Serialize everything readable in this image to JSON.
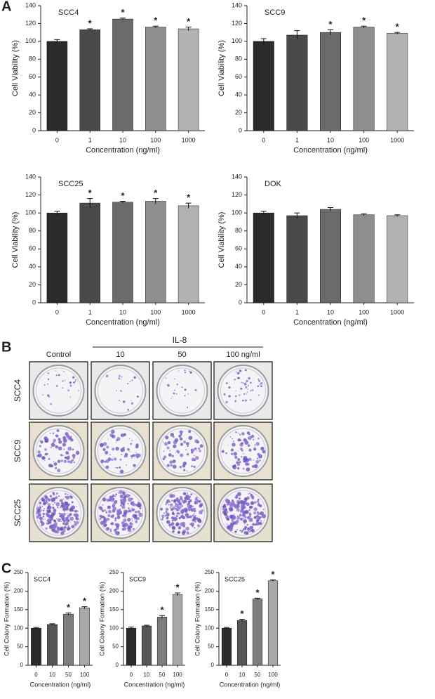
{
  "panel_labels": [
    "A",
    "B",
    "C"
  ],
  "panel_b": {
    "group_label": "IL-8",
    "columns": [
      "Control",
      "10",
      "50",
      "100 ng/ml"
    ],
    "rows": [
      "SCC4",
      "SCC9",
      "SCC25"
    ]
  },
  "chart_data": [
    {
      "type": "bar",
      "title": "SCC4",
      "x_label": "Concentration (ng/ml)",
      "y_label": "Cell Viability (%)",
      "categories": [
        "0",
        "1",
        "10",
        "100",
        "1000"
      ],
      "values": [
        100,
        113,
        125,
        116,
        114
      ],
      "errors": [
        2,
        1,
        1,
        1,
        2
      ],
      "stars": [
        null,
        "*",
        "*",
        "*",
        "*"
      ],
      "colors": [
        "#2b2b2b",
        "#4a4a4a",
        "#6b6b6b",
        "#8e8e8e",
        "#b2b2b2"
      ],
      "ylim": [
        0,
        140
      ],
      "yticks": [
        0,
        20,
        40,
        60,
        80,
        100,
        120,
        140
      ]
    },
    {
      "type": "bar",
      "title": "SCC9",
      "x_label": "Concentration (ng/ml)",
      "y_label": "Cell Viability (%)",
      "categories": [
        "0",
        "1",
        "10",
        "100",
        "1000"
      ],
      "values": [
        100,
        107,
        110,
        116,
        109
      ],
      "errors": [
        3,
        5,
        3,
        1,
        1
      ],
      "stars": [
        null,
        null,
        "*",
        "*",
        "*"
      ],
      "colors": [
        "#2b2b2b",
        "#4a4a4a",
        "#6b6b6b",
        "#8e8e8e",
        "#b2b2b2"
      ],
      "ylim": [
        0,
        140
      ],
      "yticks": [
        0,
        20,
        40,
        60,
        80,
        100,
        120,
        140
      ]
    },
    {
      "type": "bar",
      "title": "SCC25",
      "x_label": "Concentration (ng/ml)",
      "y_label": "Cell Viability (%)",
      "categories": [
        "0",
        "1",
        "10",
        "100",
        "1000"
      ],
      "values": [
        100,
        111,
        112,
        113,
        108
      ],
      "errors": [
        2,
        5,
        1,
        3,
        3
      ],
      "stars": [
        null,
        "*",
        "*",
        "*",
        "*"
      ],
      "colors": [
        "#2b2b2b",
        "#4a4a4a",
        "#6b6b6b",
        "#8e8e8e",
        "#b2b2b2"
      ],
      "ylim": [
        0,
        140
      ],
      "yticks": [
        0,
        20,
        40,
        60,
        80,
        100,
        120,
        140
      ]
    },
    {
      "type": "bar",
      "title": "DOK",
      "x_label": "Concentration (ng/ml)",
      "y_label": "Cell Viability (%)",
      "categories": [
        "0",
        "1",
        "10",
        "100",
        "1000"
      ],
      "values": [
        100,
        97,
        104,
        98,
        97
      ],
      "errors": [
        2,
        3,
        2,
        1,
        1
      ],
      "stars": [
        null,
        null,
        null,
        null,
        null
      ],
      "colors": [
        "#2b2b2b",
        "#4a4a4a",
        "#6b6b6b",
        "#8e8e8e",
        "#b2b2b2"
      ],
      "ylim": [
        0,
        140
      ],
      "yticks": [
        0,
        20,
        40,
        60,
        80,
        100,
        120,
        140
      ]
    },
    {
      "type": "bar",
      "title": "SCC4",
      "x_label": "Concentration (ng/ml)",
      "y_label": "Cell Colony Formation (%)",
      "categories": [
        "0",
        "10",
        "50",
        "100"
      ],
      "values": [
        100,
        110,
        138,
        155
      ],
      "errors": [
        2,
        2,
        3,
        3
      ],
      "stars": [
        null,
        null,
        "*",
        "*"
      ],
      "colors": [
        "#2b2b2b",
        "#555555",
        "#7d7d7d",
        "#a8a8a8"
      ],
      "ylim": [
        0,
        250
      ],
      "yticks": [
        0,
        50,
        100,
        150,
        200,
        250
      ]
    },
    {
      "type": "bar",
      "title": "SCC9",
      "x_label": "Concentration (ng/ml)",
      "y_label": "Cell Colony Formation (%)",
      "categories": [
        "0",
        "10",
        "50",
        "100"
      ],
      "values": [
        100,
        106,
        130,
        191
      ],
      "errors": [
        3,
        2,
        4,
        4
      ],
      "stars": [
        null,
        null,
        "*",
        "*"
      ],
      "colors": [
        "#2b2b2b",
        "#555555",
        "#7d7d7d",
        "#a8a8a8"
      ],
      "ylim": [
        0,
        250
      ],
      "yticks": [
        0,
        50,
        100,
        150,
        200,
        250
      ]
    },
    {
      "type": "bar",
      "title": "SCC25",
      "x_label": "Concentration (ng/ml)",
      "y_label": "Cell Colony Formation (%)",
      "categories": [
        "0",
        "10",
        "50",
        "100"
      ],
      "values": [
        100,
        121,
        179,
        228
      ],
      "errors": [
        2,
        3,
        2,
        2
      ],
      "stars": [
        null,
        "*",
        "*",
        "*"
      ],
      "colors": [
        "#2b2b2b",
        "#555555",
        "#7d7d7d",
        "#a8a8a8"
      ],
      "ylim": [
        0,
        250
      ],
      "yticks": [
        0,
        50,
        100,
        150,
        200,
        250
      ]
    }
  ]
}
